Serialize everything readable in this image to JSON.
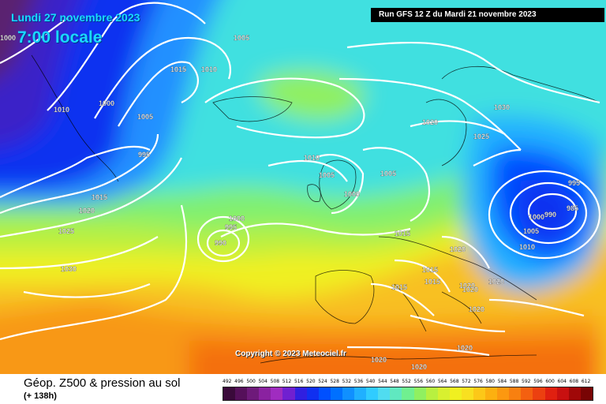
{
  "header": {
    "date": "Lundi 27 novembre 2023",
    "time": "7:00 locale",
    "run": "Run GFS 12 Z du Mardi 21 novembre 2023"
  },
  "copyright": "Copyright © 2023 Meteociel.fr",
  "footer": {
    "title": "Géop. Z500 & pression au sol",
    "subtitle": "(+ 138h)"
  },
  "isobar_labels": [
    "1000",
    "1005",
    "1015",
    "1010",
    "1010",
    "1000",
    "1005",
    "995",
    "1015",
    "1020",
    "1025",
    "1030",
    "1000",
    "995",
    "990",
    "1010",
    "1005",
    "1000",
    "1005",
    "1020",
    "1030",
    "1025",
    "995",
    "1000",
    "990",
    "985",
    "1005",
    "1010",
    "1015",
    "1020",
    "1015",
    "1015",
    "1020",
    "1020",
    "1020",
    "1020",
    "1020",
    "1015",
    "1020",
    "1020"
  ],
  "scale": {
    "labels": [
      "492",
      "496",
      "500",
      "504",
      "508",
      "512",
      "516",
      "520",
      "524",
      "528",
      "532",
      "536",
      "540",
      "544",
      "548",
      "552",
      "556",
      "560",
      "564",
      "568",
      "572",
      "576",
      "580",
      "584",
      "588",
      "592",
      "596",
      "600",
      "604",
      "608",
      "612"
    ],
    "colors": [
      "#3a0a3a",
      "#55105a",
      "#6e1a7a",
      "#8a22a0",
      "#a02cc0",
      "#7020d0",
      "#3020e0",
      "#1030f0",
      "#0050ff",
      "#0070ff",
      "#1090ff",
      "#20b0ff",
      "#30ccff",
      "#50dcf0",
      "#60e8c0",
      "#70f090",
      "#90f060",
      "#b8f040",
      "#d8f030",
      "#f0f020",
      "#f8e020",
      "#fcc818",
      "#fcb010",
      "#fc9810",
      "#f88010",
      "#f46010",
      "#ec4010",
      "#e02010",
      "#c81010",
      "#a00808",
      "#780404"
    ]
  },
  "colors": {
    "title_text": "#1ad8ff",
    "isobars": "#ffffff"
  }
}
